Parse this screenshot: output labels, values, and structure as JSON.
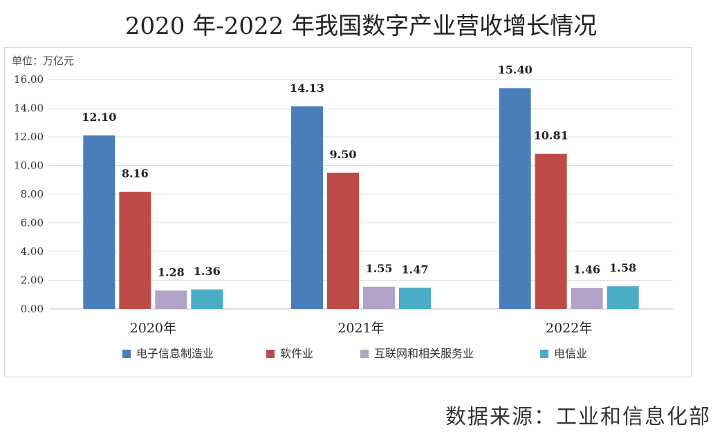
{
  "title": "2020 年-2022 年我国数字产业营收增长情况",
  "source": "数据来源：工业和信息化部",
  "chart_data": {
    "type": "bar",
    "title": "2020 年-2022 年我国数字产业营收增长情况",
    "unit_label": "单位：万亿元",
    "xlabel": "",
    "ylabel": "单位：万亿元",
    "ylim": [
      0,
      16
    ],
    "yticks": [
      "0.00",
      "2.00",
      "4.00",
      "6.00",
      "8.00",
      "10.00",
      "12.00",
      "14.00",
      "16.00"
    ],
    "categories": [
      "2020年",
      "2021年",
      "2022年"
    ],
    "grid": true,
    "legend_position": "bottom",
    "series": [
      {
        "name": "电子信息制造业",
        "color": "#4a7ebb",
        "values": [
          12.1,
          14.13,
          15.4
        ],
        "labels": [
          "12.10",
          "14.13",
          "15.40"
        ]
      },
      {
        "name": "软件业",
        "color": "#be4b48",
        "values": [
          8.16,
          9.5,
          10.81
        ],
        "labels": [
          "8.16",
          "9.50",
          "10.81"
        ]
      },
      {
        "name": "互联网和相关服务业",
        "color": "#b3a2c7",
        "values": [
          1.28,
          1.55,
          1.46
        ],
        "labels": [
          "1.28",
          "1.55",
          "1.46"
        ]
      },
      {
        "name": "电信业",
        "color": "#4bacc6",
        "values": [
          1.36,
          1.47,
          1.58
        ],
        "labels": [
          "1.36",
          "1.47",
          "1.58"
        ]
      }
    ]
  }
}
